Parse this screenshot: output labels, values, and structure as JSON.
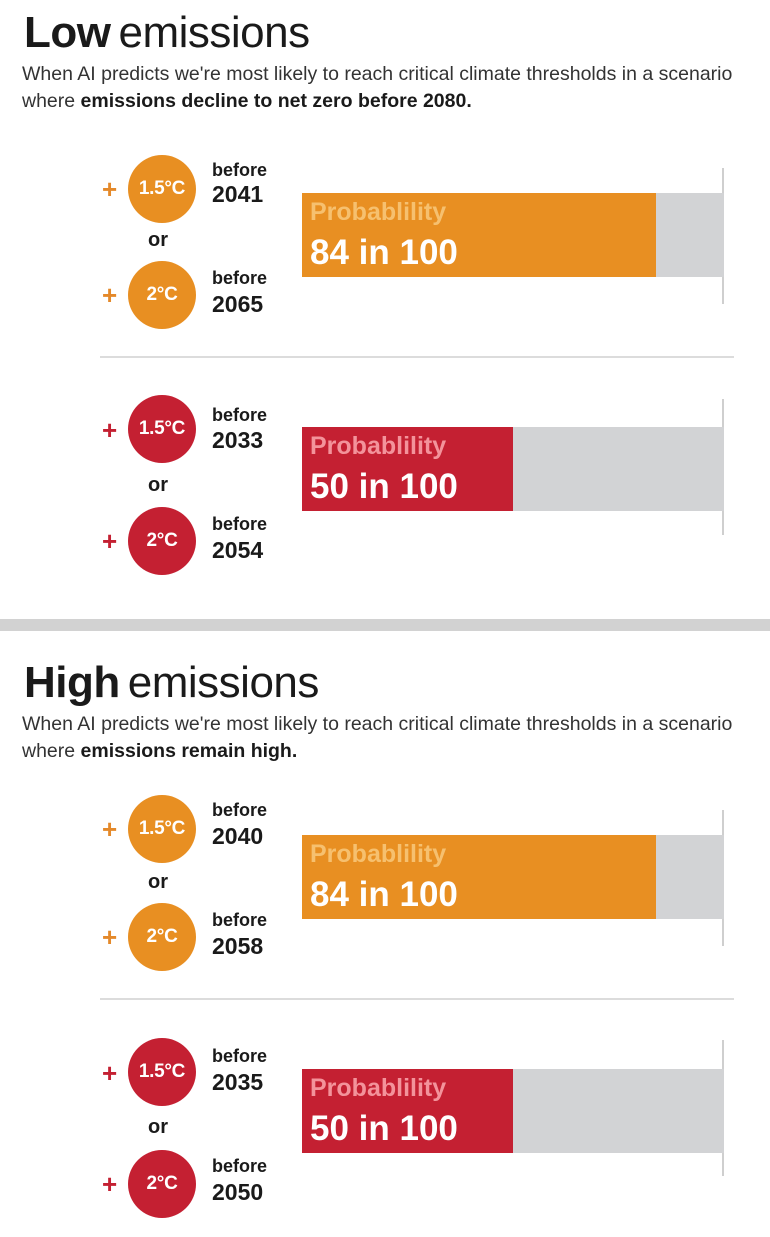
{
  "colors": {
    "orange": "#e88f22",
    "red": "#c42032",
    "orange_label": "#f6c06f",
    "red_label": "#f3939b",
    "track": "#d2d3d5",
    "plus_orange": "#e4892a",
    "plus_red": "#c42032"
  },
  "chart_data": [
    {
      "type": "bar",
      "title_strong": "Low",
      "title_light": "emissions",
      "subtitle_plain": "When AI predicts we're most likely to reach critical climate thresholds in a scenario where ",
      "subtitle_bold": "emissions decline to net zero before 2080.",
      "xlim": [
        0,
        100
      ],
      "blocks": [
        {
          "color": "orange",
          "first": {
            "plus": "+",
            "threshold": "1.5°C",
            "before": "before",
            "year": "2041"
          },
          "or": "or",
          "second": {
            "plus": "+",
            "threshold": "2°C",
            "before": "before",
            "year": "2065"
          },
          "label": "Probablility",
          "value_text": "84 in 100",
          "value": 84
        },
        {
          "color": "red",
          "first": {
            "plus": "+",
            "threshold": "1.5°C",
            "before": "before",
            "year": "2033"
          },
          "or": "or",
          "second": {
            "plus": "+",
            "threshold": "2°C",
            "before": "before",
            "year": "2054"
          },
          "label": "Probablility",
          "value_text": "50 in 100",
          "value": 50
        }
      ]
    },
    {
      "type": "bar",
      "title_strong": "High",
      "title_light": "emissions",
      "subtitle_plain": "When AI predicts we're most likely to reach critical climate thresholds in a scenario where ",
      "subtitle_bold": "emissions remain high.",
      "xlim": [
        0,
        100
      ],
      "blocks": [
        {
          "color": "orange",
          "first": {
            "plus": "+",
            "threshold": "1.5°C",
            "before": "before",
            "year": "2040"
          },
          "or": "or",
          "second": {
            "plus": "+",
            "threshold": "2°C",
            "before": "before",
            "year": "2058"
          },
          "label": "Probablility",
          "value_text": "84 in 100",
          "value": 84
        },
        {
          "color": "red",
          "first": {
            "plus": "+",
            "threshold": "1.5°C",
            "before": "before",
            "year": "2035"
          },
          "or": "or",
          "second": {
            "plus": "+",
            "threshold": "2°C",
            "before": "before",
            "year": "2050"
          },
          "label": "Probablility",
          "value_text": "50 in 100",
          "value": 50
        }
      ]
    }
  ]
}
